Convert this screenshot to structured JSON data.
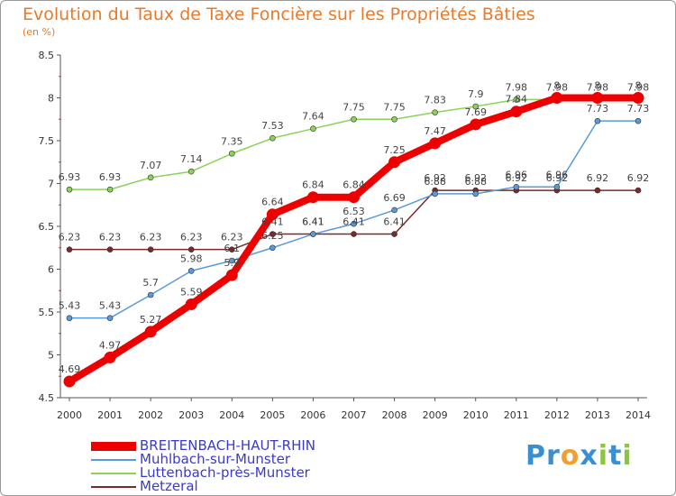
{
  "title": "Evolution du Taux de Taxe Foncière sur les Propriétés Bâties",
  "subtitle": "(en %)",
  "logo": {
    "letters": [
      "P",
      "r",
      "o",
      "x",
      "i",
      "t",
      "i"
    ],
    "colors": [
      "#3a8fd0",
      "#3a8fd0",
      "#f0a030",
      "#3a8fd0",
      "#8cc63f",
      "#3a8fd0",
      "#8cc63f"
    ]
  },
  "chart_data": {
    "type": "line",
    "title": "Evolution du Taux de Taxe Foncière sur les Propriétés Bâties",
    "ylabel": "(en %)",
    "xlabel": "",
    "x": [
      2000,
      2001,
      2002,
      2003,
      2004,
      2005,
      2006,
      2007,
      2008,
      2009,
      2010,
      2011,
      2012,
      2013,
      2014
    ],
    "ylim": [
      4.5,
      8.5
    ],
    "yticks": [
      4.5,
      5,
      5.5,
      6,
      6.5,
      7,
      7.5,
      8,
      8.5
    ],
    "grid": false,
    "legend": "bottom-left",
    "series": [
      {
        "name": "BREITENBACH-HAUT-RHIN",
        "color": "#ee0000",
        "values": [
          4.69,
          4.97,
          5.27,
          5.59,
          5.93,
          6.64,
          6.84,
          6.84,
          7.25,
          7.47,
          7.69,
          7.84,
          8,
          8,
          8
        ],
        "labels": [
          "4.69",
          "4.97",
          "5.27",
          "5.59",
          "5.9",
          "6.64",
          "6.84",
          "6.84",
          "7.25",
          "7.47",
          "7.69",
          "7.84",
          "8",
          "8",
          "8"
        ]
      },
      {
        "name": "Muhlbach-sur-Munster",
        "color": "#5a9ad8",
        "values": [
          5.43,
          5.43,
          5.7,
          5.98,
          6.1,
          6.25,
          6.41,
          6.53,
          6.69,
          6.88,
          6.88,
          6.96,
          6.96,
          7.73,
          7.73
        ],
        "labels": [
          "5.43",
          "5.43",
          "5.7",
          "5.98",
          "6.1",
          "6.25",
          "6.41",
          "6.53",
          "6.69",
          "6.88",
          "6.88",
          "6.96",
          "6.96",
          "7.73",
          "7.73"
        ]
      },
      {
        "name": "Luttenbach-près-Munster",
        "color": "#8cd25a",
        "values": [
          6.93,
          6.93,
          7.07,
          7.14,
          7.35,
          7.53,
          7.64,
          7.75,
          7.75,
          7.83,
          7.9,
          7.98,
          7.98,
          7.98,
          7.98
        ],
        "labels": [
          "6.93",
          "6.93",
          "7.07",
          "7.14",
          "7.35",
          "7.53",
          "7.64",
          "7.75",
          "7.75",
          "7.83",
          "7.9",
          "7.98",
          "7.98",
          "7.98",
          "7.98"
        ]
      },
      {
        "name": "Metzeral",
        "color": "#7a2a2a",
        "values": [
          6.23,
          6.23,
          6.23,
          6.23,
          6.23,
          6.41,
          6.41,
          6.41,
          6.41,
          6.92,
          6.92,
          6.92,
          6.92,
          6.92,
          6.92
        ],
        "labels": [
          "6.23",
          "6.23",
          "6.23",
          "6.23",
          "6.23",
          "6.41",
          "6.41",
          "6.41",
          "6.41",
          "6.92",
          "6.92",
          "6.92",
          "6.92",
          "6.92",
          "6.92"
        ]
      }
    ]
  }
}
